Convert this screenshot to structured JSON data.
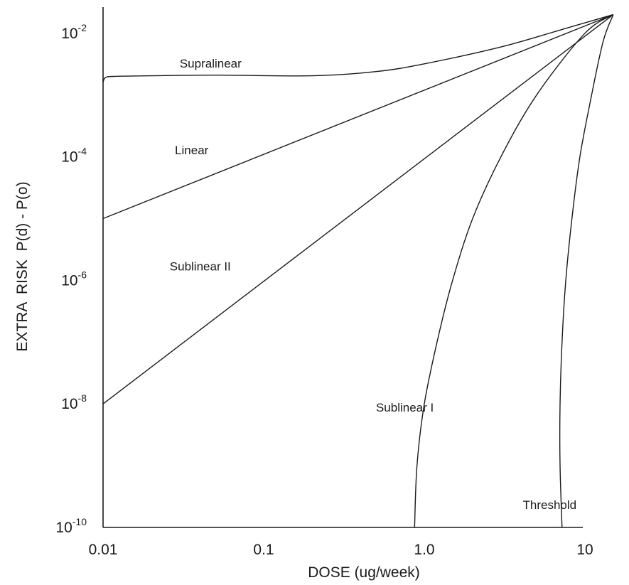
{
  "chart_data": {
    "type": "line",
    "xlabel": "DOSE (ug/week)",
    "ylabel": "EXTRA  RISK  P(d) - P(o)",
    "x_scale": "log",
    "y_scale": "log",
    "xlim": [
      0.01,
      15
    ],
    "ylim": [
      1e-10,
      0.02
    ],
    "x_ticks": [
      {
        "value": 0.01,
        "label": "0.01"
      },
      {
        "value": 0.1,
        "label": "0.1"
      },
      {
        "value": 1,
        "label": "1.0"
      },
      {
        "value": 10,
        "label": "10"
      }
    ],
    "y_ticks": [
      {
        "value": 0.01,
        "base": "10",
        "exp": "-2"
      },
      {
        "value": 0.0001,
        "base": "10",
        "exp": "-4"
      },
      {
        "value": 1e-06,
        "base": "10",
        "exp": "-6"
      },
      {
        "value": 1e-08,
        "base": "10",
        "exp": "-8"
      },
      {
        "value": 1e-10,
        "base": "10",
        "exp": "-10"
      }
    ],
    "grid": false,
    "legend": "none",
    "series": [
      {
        "name": "Supralinear",
        "points": [
          [
            0.01,
            0.0016
          ],
          [
            0.0103,
            0.0019
          ],
          [
            0.0115,
            0.002
          ],
          [
            0.02,
            0.00205
          ],
          [
            0.05,
            0.0021
          ],
          [
            0.2,
            0.00205
          ],
          [
            0.5,
            0.0024
          ],
          [
            1,
            0.0032
          ],
          [
            3,
            0.006
          ],
          [
            8,
            0.0125
          ],
          [
            15,
            0.02
          ]
        ]
      },
      {
        "name": "Linear",
        "points": [
          [
            0.01,
            1e-05
          ],
          [
            15,
            0.02
          ]
        ]
      },
      {
        "name": "Sublinear II",
        "points": [
          [
            0.01,
            1e-08
          ],
          [
            15,
            0.02
          ]
        ]
      },
      {
        "name": "Sublinear I",
        "points": [
          [
            0.87,
            1e-10
          ],
          [
            0.9,
            1e-09
          ],
          [
            1.0,
            1e-08
          ],
          [
            1.2,
            1e-07
          ],
          [
            1.5,
            1e-06
          ],
          [
            2.0,
            1e-05
          ],
          [
            3.0,
            0.0001
          ],
          [
            5.0,
            0.001
          ],
          [
            10.0,
            0.01
          ],
          [
            15,
            0.02
          ]
        ]
      },
      {
        "name": "Threshold",
        "points": [
          [
            7.2,
            1e-10
          ],
          [
            7.0,
            1e-09
          ],
          [
            7.0,
            1e-08
          ],
          [
            7.2,
            1e-07
          ],
          [
            7.6,
            1e-06
          ],
          [
            8.3,
            1e-05
          ],
          [
            9.3,
            0.0001
          ],
          [
            11,
            0.001
          ],
          [
            13,
            0.0075
          ],
          [
            15,
            0.02
          ]
        ]
      }
    ],
    "annotations": [
      {
        "text": "Supralinear",
        "x": 0.03,
        "y": 0.0028
      },
      {
        "text": "Linear",
        "x": 0.028,
        "y": 0.00011
      },
      {
        "text": "Sublinear II",
        "x": 0.026,
        "y": 1.45e-06
      },
      {
        "text": "Sublinear I",
        "x": 0.5,
        "y": 7.5e-09
      },
      {
        "text": "Threshold",
        "x": 4.1,
        "y": 2e-10
      }
    ]
  }
}
